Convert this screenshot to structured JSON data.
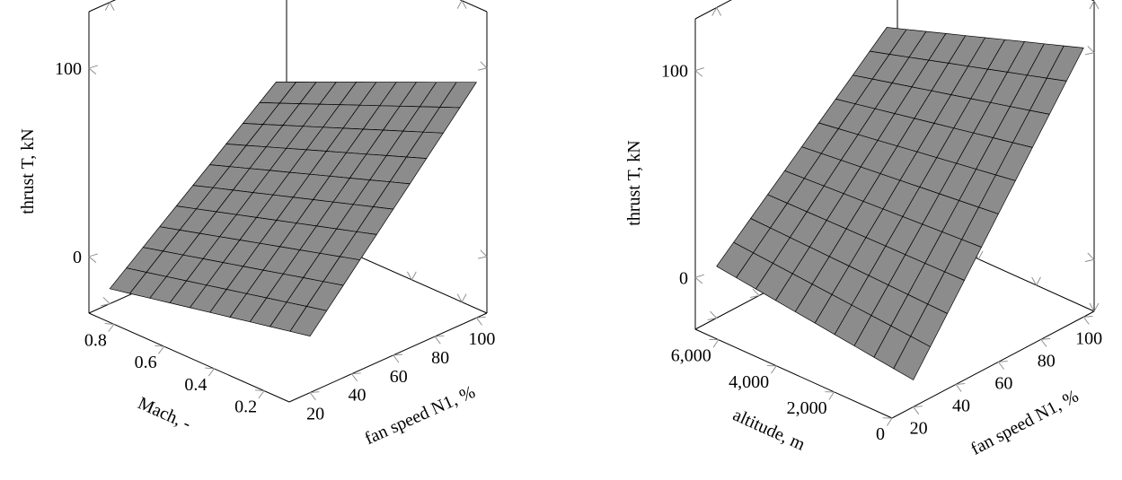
{
  "chart_data": [
    {
      "type": "surface",
      "zlabel": "thrust T, kN",
      "zticks": [
        0,
        100
      ],
      "xlabel": "fan speed N1, %",
      "xticks": [
        "20",
        "40",
        "60",
        "80",
        "100"
      ],
      "xlim": [
        10,
        105
      ],
      "ylabel": "Mach, -",
      "yticks": [
        "0.2",
        "0.4",
        "0.6",
        "0.8"
      ],
      "ylim": [
        0.1,
        0.9
      ],
      "zlim": [
        -30,
        130
      ],
      "surface": {
        "x_range": [
          20,
          100
        ],
        "y_range": [
          0.1,
          0.9
        ],
        "grid": [
          10,
          10
        ],
        "z_corners": {
          "x_min_y_min": 0,
          "x_max_y_min": 95,
          "x_min_y_max": -22,
          "x_max_y_max": 48
        }
      }
    },
    {
      "type": "surface",
      "zlabel": "thrust T, kN",
      "zticks": [
        0,
        100
      ],
      "xlabel": "fan speed N1, %",
      "xticks": [
        "20",
        "40",
        "60",
        "80",
        "100"
      ],
      "xlim": [
        10,
        105
      ],
      "ylabel": "altitude, m",
      "yticks": [
        "0",
        "2,000",
        "4,000",
        "6,000"
      ],
      "ylim": [
        0,
        6800
      ],
      "zlim": [
        -25,
        125
      ],
      "surface": {
        "x_range": [
          20,
          100
        ],
        "y_range": [
          0,
          6800
        ],
        "grid": [
          10,
          10
        ],
        "z_corners": {
          "x_min_y_min": -12,
          "x_max_y_min": 105,
          "x_min_y_max": 0,
          "x_max_y_max": 72
        }
      }
    }
  ]
}
